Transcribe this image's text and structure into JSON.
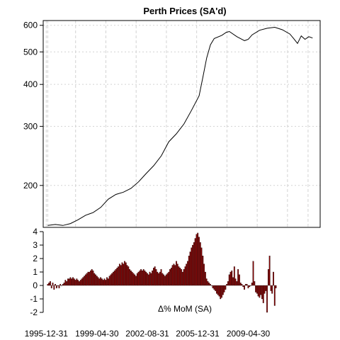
{
  "chart_data": [
    {
      "type": "line",
      "title": "Perth Prices (SA'd)",
      "xlabel": "",
      "ylabel": "",
      "y_scale": "log",
      "ylim": [
        150,
        620
      ],
      "yticks": [
        200,
        300,
        400,
        500,
        600
      ],
      "xlim": [
        1995.7,
        2014.0
      ],
      "grid": true,
      "grid_x": [
        1995.9,
        1996.0,
        1997.84,
        1999.84,
        2001.84,
        2003.84,
        2005.84,
        2007.84,
        2009.84,
        2011.84,
        2013.2
      ],
      "grid_y": [
        200,
        300,
        400,
        500,
        600
      ],
      "series": [
        {
          "color": "#000000",
          "x": [
            1996.0,
            1996.5,
            1997.0,
            1997.5,
            1998.0,
            1998.5,
            1999.0,
            1999.5,
            2000.0,
            2000.5,
            2001.0,
            2001.5,
            2002.0,
            2002.5,
            2003.0,
            2003.5,
            2004.0,
            2004.5,
            2005.0,
            2005.5,
            2006.0,
            2006.25,
            2006.5,
            2006.75,
            2007.0,
            2007.5,
            2007.8,
            2008.0,
            2008.5,
            2009.0,
            2009.25,
            2009.5,
            2010.0,
            2010.5,
            2011.0,
            2011.5,
            2012.0,
            2012.25,
            2012.5,
            2012.75,
            2013.0,
            2013.25,
            2013.5
          ],
          "y": [
            152,
            153,
            152,
            154,
            158,
            163,
            166,
            172,
            182,
            188,
            191,
            196,
            205,
            217,
            229,
            245,
            270,
            285,
            305,
            335,
            370,
            420,
            480,
            525,
            548,
            560,
            572,
            575,
            555,
            540,
            545,
            562,
            580,
            588,
            592,
            582,
            565,
            548,
            530,
            558,
            545,
            555,
            550
          ]
        }
      ]
    },
    {
      "type": "bar",
      "xlabel": "Δ% MoM (SA)",
      "ylabel": "",
      "ylim": [
        -2,
        4
      ],
      "yticks": [
        -2,
        -1,
        0,
        1,
        2,
        3,
        4
      ],
      "xtick_labels": [
        "1995-12-31",
        "1999-04-30",
        "2002-08-31",
        "2005-12-31",
        "2009-04-30"
      ],
      "xtick_values": [
        1995.9,
        1999.25,
        2002.58,
        2005.9,
        2009.25
      ],
      "color": "#8b0000",
      "start": 1996.0,
      "step": 0.0833,
      "values": [
        0.1,
        0.2,
        0.3,
        -0.2,
        0.2,
        -0.3,
        0.1,
        -0.2,
        0.0,
        -0.2,
        0.1,
        0.0,
        0.1,
        0.2,
        0.4,
        0.3,
        0.5,
        0.5,
        0.6,
        0.5,
        0.6,
        0.5,
        0.4,
        0.5,
        0.4,
        0.3,
        0.4,
        0.5,
        0.6,
        0.7,
        0.8,
        0.9,
        1.0,
        1.0,
        1.1,
        1.2,
        1.1,
        0.9,
        0.8,
        0.7,
        0.6,
        0.5,
        0.6,
        0.5,
        0.4,
        0.5,
        0.4,
        0.6,
        0.5,
        0.7,
        0.8,
        0.9,
        1.0,
        1.1,
        1.2,
        1.3,
        1.4,
        1.6,
        1.5,
        1.7,
        1.6,
        1.8,
        1.7,
        1.5,
        1.4,
        1.2,
        1.1,
        1.0,
        0.9,
        0.8,
        0.7,
        0.9,
        1.0,
        1.1,
        1.2,
        1.1,
        1.2,
        1.1,
        1.0,
        0.9,
        0.8,
        1.0,
        0.9,
        1.1,
        1.3,
        1.4,
        1.2,
        1.0,
        0.9,
        1.0,
        1.2,
        0.9,
        0.8,
        0.7,
        0.8,
        0.9,
        1.0,
        1.2,
        1.3,
        1.5,
        1.6,
        1.5,
        1.8,
        1.6,
        1.4,
        1.3,
        1.2,
        1.0,
        1.2,
        1.4,
        1.6,
        1.8,
        2.2,
        2.5,
        2.8,
        3.0,
        3.2,
        3.5,
        3.8,
        3.9,
        3.6,
        3.2,
        2.8,
        2.2,
        1.6,
        1.0,
        0.5,
        0.3,
        0.2,
        0.1,
        0.0,
        -0.2,
        -0.3,
        -0.4,
        -0.6,
        -0.7,
        -0.8,
        -1.0,
        -0.9,
        -0.7,
        -0.5,
        -0.3,
        0.1,
        0.3,
        0.8,
        1.0,
        1.1,
        0.6,
        1.4,
        0.5,
        0.3,
        1.2,
        0.8,
        0.2,
        0.1,
        -0.1,
        -0.3,
        0.1,
        0.1,
        -0.2,
        -0.1,
        0.0,
        0.2,
        1.8,
        0.3,
        -0.5,
        -0.6,
        -0.8,
        -0.9,
        -0.7,
        -1.0,
        -1.3,
        -0.6,
        -0.4,
        -2.0,
        1.2,
        2.2,
        -0.4,
        -0.6,
        1.0,
        -1.5,
        -0.2
      ]
    }
  ]
}
